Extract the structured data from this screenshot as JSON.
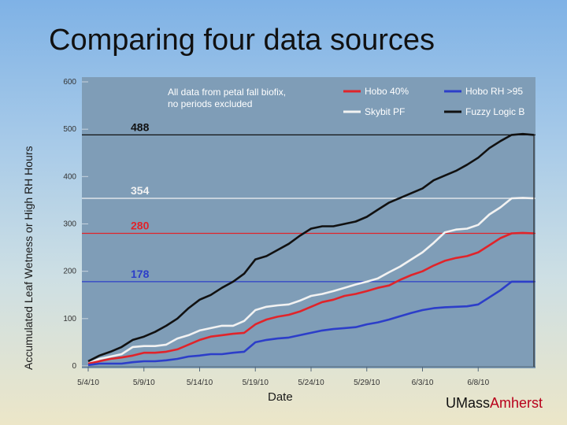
{
  "slide": {
    "title": "Comparing four data sources",
    "brand_left": "UMass",
    "brand_right": "Amherst"
  },
  "colors": {
    "hobo40": "#e0242a",
    "hobo95": "#2c3ec9",
    "skybit": "#f2f2f2",
    "fuzzy": "#111111",
    "plot_bg": "#7f9db7"
  },
  "chart_data": {
    "type": "line",
    "title": "",
    "xlabel": "Date",
    "ylabel": "Accumulated Leaf Wetness or High RH Hours",
    "xlim": [
      0,
      40
    ],
    "ylim": [
      0,
      600
    ],
    "yticks": [
      0,
      100,
      200,
      300,
      400,
      500,
      600
    ],
    "xticks": [
      {
        "day": 0,
        "label": "5/4/10"
      },
      {
        "day": 5,
        "label": "5/9/10"
      },
      {
        "day": 10,
        "label": "5/14/10"
      },
      {
        "day": 15,
        "label": "5/19/10"
      },
      {
        "day": 20,
        "label": "5/24/10"
      },
      {
        "day": 25,
        "label": "5/29/10"
      },
      {
        "day": 30,
        "label": "6/3/10"
      },
      {
        "day": 35,
        "label": "6/8/10"
      }
    ],
    "annotation": [
      "All data from petal fall biofix,",
      "no periods excluded"
    ],
    "legend": [
      {
        "name": "Hobo 40%",
        "key": "hobo40"
      },
      {
        "name": "Hobo RH >95",
        "key": "hobo95"
      },
      {
        "name": "Skybit PF",
        "key": "skybit"
      },
      {
        "name": "Fuzzy Logic B",
        "key": "fuzzy"
      }
    ],
    "reference_lines": [
      {
        "value": 488,
        "label": "488",
        "key": "fuzzy"
      },
      {
        "value": 354,
        "label": "354",
        "key": "skybit"
      },
      {
        "value": 280,
        "label": "280",
        "key": "hobo40"
      },
      {
        "value": 178,
        "label": "178",
        "key": "hobo95"
      }
    ],
    "x": [
      0,
      1,
      2,
      3,
      4,
      5,
      6,
      7,
      8,
      9,
      10,
      11,
      12,
      13,
      14,
      15,
      16,
      17,
      18,
      19,
      20,
      21,
      22,
      23,
      24,
      25,
      26,
      27,
      28,
      29,
      30,
      31,
      32,
      33,
      34,
      35,
      36,
      37,
      38,
      39,
      40
    ],
    "series": [
      {
        "name": "Fuzzy Logic B",
        "key": "fuzzy",
        "values": [
          10,
          22,
          30,
          40,
          55,
          62,
          72,
          85,
          100,
          122,
          140,
          150,
          165,
          178,
          195,
          225,
          232,
          245,
          258,
          275,
          290,
          295,
          295,
          300,
          305,
          315,
          330,
          345,
          355,
          365,
          375,
          392,
          402,
          412,
          425,
          440,
          460,
          475,
          488,
          490,
          488
        ]
      },
      {
        "name": "Skybit PF",
        "key": "skybit",
        "values": [
          5,
          15,
          20,
          25,
          40,
          42,
          42,
          45,
          58,
          65,
          75,
          80,
          85,
          85,
          95,
          118,
          125,
          128,
          130,
          138,
          148,
          152,
          158,
          165,
          172,
          178,
          185,
          198,
          210,
          225,
          240,
          260,
          282,
          288,
          290,
          298,
          320,
          335,
          354,
          355,
          354
        ]
      },
      {
        "name": "Hobo 40%",
        "key": "hobo40",
        "values": [
          5,
          10,
          15,
          18,
          22,
          28,
          28,
          30,
          35,
          45,
          55,
          62,
          65,
          68,
          70,
          88,
          98,
          104,
          108,
          115,
          125,
          135,
          140,
          148,
          152,
          158,
          165,
          170,
          182,
          192,
          200,
          212,
          222,
          228,
          232,
          240,
          255,
          270,
          280,
          281,
          280
        ]
      },
      {
        "name": "Hobo RH >95",
        "key": "hobo95",
        "values": [
          2,
          5,
          5,
          5,
          8,
          10,
          10,
          12,
          15,
          20,
          22,
          25,
          25,
          28,
          30,
          50,
          55,
          58,
          60,
          65,
          70,
          75,
          78,
          80,
          82,
          88,
          92,
          98,
          105,
          112,
          118,
          122,
          124,
          125,
          126,
          130,
          145,
          160,
          178,
          178,
          178
        ]
      }
    ]
  }
}
